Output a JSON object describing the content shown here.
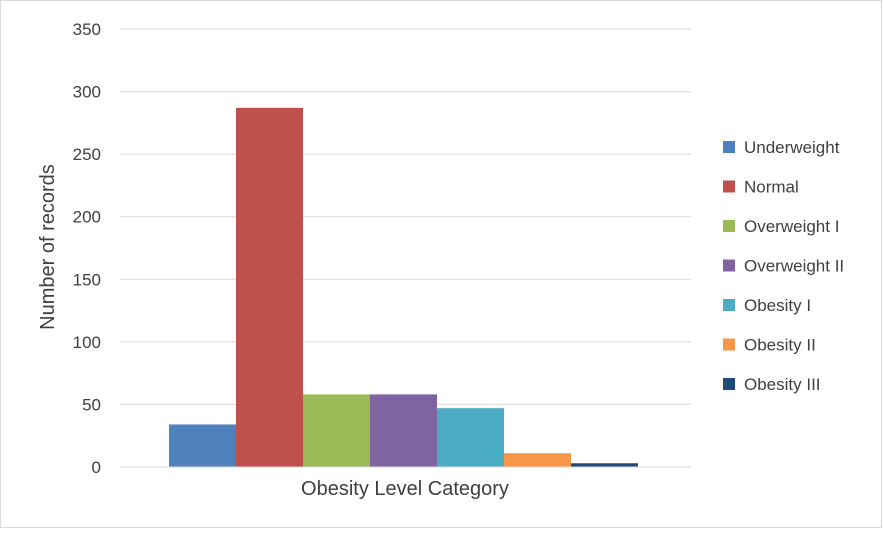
{
  "chart_data": {
    "type": "bar",
    "title": "",
    "xlabel": "Obesity Level Category",
    "ylabel": "Number of records",
    "ylim": [
      0,
      350
    ],
    "yticks": [
      0,
      50,
      100,
      150,
      200,
      250,
      300,
      350
    ],
    "grid": true,
    "legend_position": "right",
    "categories": [
      ""
    ],
    "series": [
      {
        "name": "Underweight",
        "values": [
          34
        ],
        "color": "#4F81BD"
      },
      {
        "name": "Normal",
        "values": [
          287
        ],
        "color": "#C0504D"
      },
      {
        "name": "Overweight I",
        "values": [
          58
        ],
        "color": "#9BBB59"
      },
      {
        "name": "Overweight II",
        "values": [
          58
        ],
        "color": "#8064A2"
      },
      {
        "name": "Obesity I",
        "values": [
          47
        ],
        "color": "#4BACC6"
      },
      {
        "name": "Obesity II",
        "values": [
          11
        ],
        "color": "#F79646"
      },
      {
        "name": "Obesity III",
        "values": [
          3
        ],
        "color": "#1F497D"
      }
    ]
  }
}
